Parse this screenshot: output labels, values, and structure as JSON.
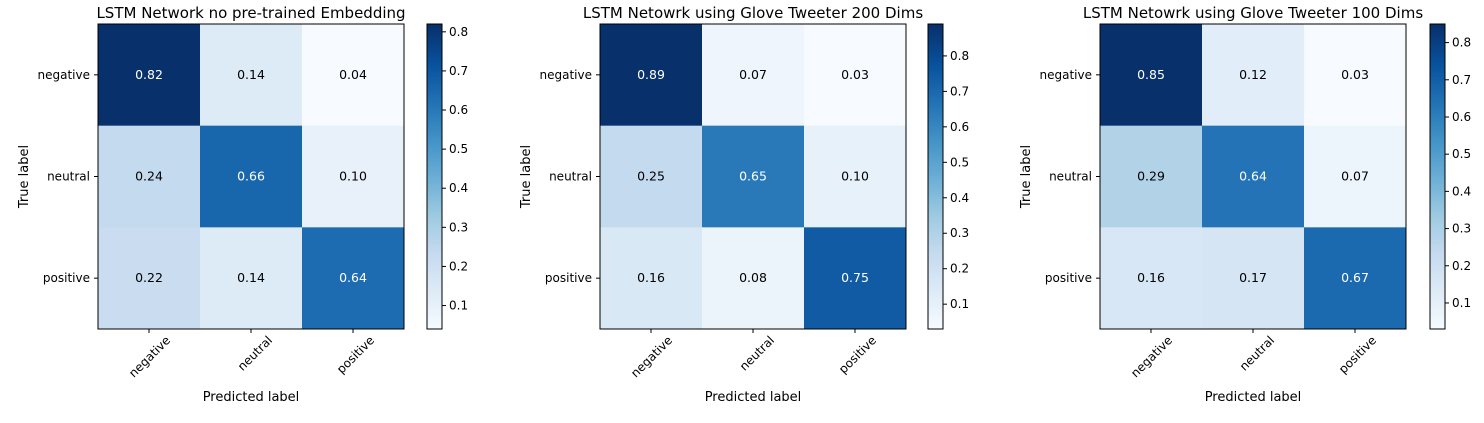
{
  "chart_data": [
    {
      "type": "heatmap",
      "title": "LSTM Network no pre-trained Embedding",
      "xlabel": "Predicted label",
      "ylabel": "True label",
      "x_categories": [
        "negative",
        "neutral",
        "positive"
      ],
      "y_categories": [
        "negative",
        "neutral",
        "positive"
      ],
      "values": [
        [
          0.82,
          0.14,
          0.04
        ],
        [
          0.24,
          0.66,
          0.1
        ],
        [
          0.22,
          0.14,
          0.64
        ]
      ],
      "value_labels": [
        [
          "0.82",
          "0.14",
          "0.04"
        ],
        [
          "0.24",
          "0.66",
          "0.10"
        ],
        [
          "0.22",
          "0.14",
          "0.64"
        ]
      ],
      "colorbar": {
        "min": 0.04,
        "max": 0.82,
        "ticks": [
          0.1,
          0.2,
          0.3,
          0.4,
          0.5,
          0.6,
          0.7,
          0.8
        ],
        "tick_labels": [
          "0.1",
          "0.2",
          "0.3",
          "0.4",
          "0.5",
          "0.6",
          "0.7",
          "0.8"
        ]
      },
      "colormap": "Blues",
      "grid": false
    },
    {
      "type": "heatmap",
      "title": "LSTM Netowrk using Glove Tweeter 200 Dims",
      "xlabel": "Predicted label",
      "ylabel": "True label",
      "x_categories": [
        "negative",
        "neutral",
        "positive"
      ],
      "y_categories": [
        "negative",
        "neutral",
        "positive"
      ],
      "values": [
        [
          0.89,
          0.07,
          0.03
        ],
        [
          0.25,
          0.65,
          0.1
        ],
        [
          0.16,
          0.08,
          0.75
        ]
      ],
      "value_labels": [
        [
          "0.89",
          "0.07",
          "0.03"
        ],
        [
          "0.25",
          "0.65",
          "0.10"
        ],
        [
          "0.16",
          "0.08",
          "0.75"
        ]
      ],
      "colorbar": {
        "min": 0.03,
        "max": 0.89,
        "ticks": [
          0.1,
          0.2,
          0.3,
          0.4,
          0.5,
          0.6,
          0.7,
          0.8
        ],
        "tick_labels": [
          "0.1",
          "0.2",
          "0.3",
          "0.4",
          "0.5",
          "0.6",
          "0.7",
          "0.8"
        ]
      },
      "colormap": "Blues",
      "grid": false
    },
    {
      "type": "heatmap",
      "title": "LSTM Netowrk using Glove Tweeter 100 Dims",
      "xlabel": "Predicted label",
      "ylabel": "True label",
      "x_categories": [
        "negative",
        "neutral",
        "positive"
      ],
      "y_categories": [
        "negative",
        "neutral",
        "positive"
      ],
      "values": [
        [
          0.85,
          0.12,
          0.03
        ],
        [
          0.29,
          0.64,
          0.07
        ],
        [
          0.16,
          0.17,
          0.67
        ]
      ],
      "value_labels": [
        [
          "0.85",
          "0.12",
          "0.03"
        ],
        [
          "0.29",
          "0.64",
          "0.07"
        ],
        [
          "0.16",
          "0.17",
          "0.67"
        ]
      ],
      "colorbar": {
        "min": 0.03,
        "max": 0.85,
        "ticks": [
          0.1,
          0.2,
          0.3,
          0.4,
          0.5,
          0.6,
          0.7,
          0.8
        ],
        "tick_labels": [
          "0.1",
          "0.2",
          "0.3",
          "0.4",
          "0.5",
          "0.6",
          "0.7",
          "0.8"
        ]
      },
      "colormap": "Blues",
      "grid": false
    }
  ]
}
